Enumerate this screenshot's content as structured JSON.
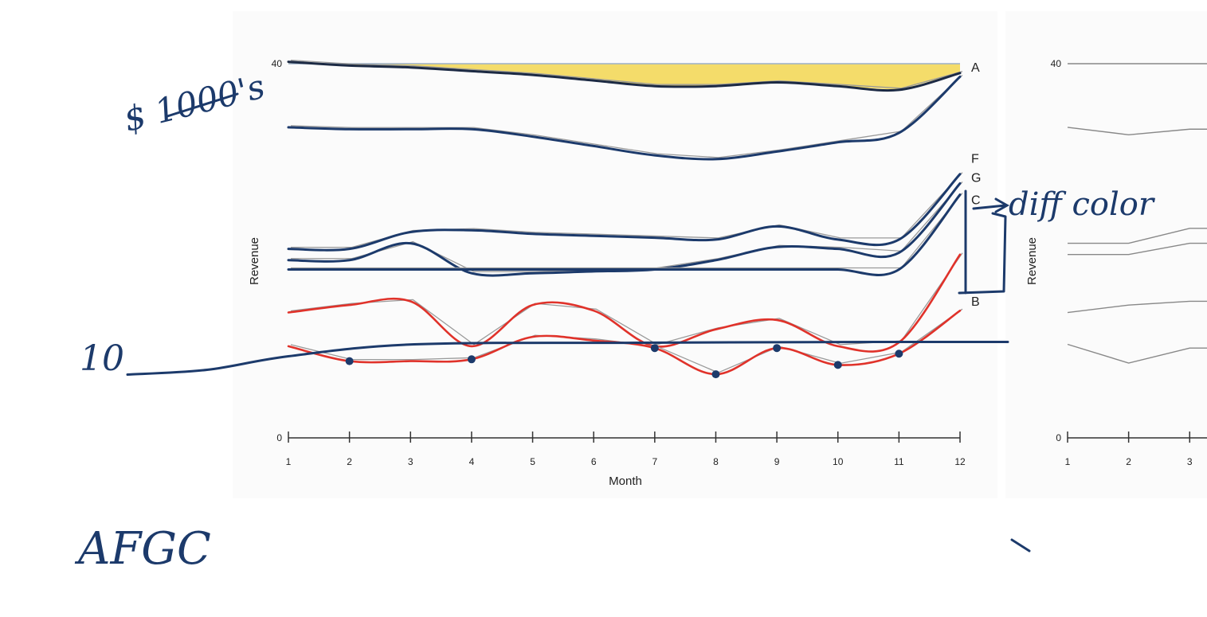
{
  "chart_data": [
    {
      "type": "line",
      "title": "",
      "xlabel": "Month",
      "ylabel": "Revenue",
      "x": [
        1,
        2,
        3,
        4,
        5,
        6,
        7,
        8,
        9,
        10,
        11,
        12
      ],
      "xlim": [
        1,
        12
      ],
      "ylim": [
        0,
        40
      ],
      "yticks": [
        "0",
        "40"
      ],
      "series": [
        {
          "name": "A",
          "values": [
            40.2,
            39.8,
            39.6,
            39.2,
            38.8,
            38.2,
            37.6,
            37.6,
            38.0,
            37.6,
            37.2,
            39.0
          ]
        },
        {
          "name": "",
          "values": [
            33.2,
            33.0,
            33.0,
            33.0,
            32.2,
            31.2,
            30.2,
            29.8,
            30.6,
            31.6,
            32.6,
            38.6
          ]
        },
        {
          "name": "F",
          "values": [
            20.2,
            20.2,
            22.0,
            22.2,
            21.8,
            21.6,
            21.4,
            21.2,
            22.6,
            21.2,
            21.2,
            28.2
          ]
        },
        {
          "name": "G",
          "values": [
            19.0,
            19.0,
            20.8,
            17.6,
            17.6,
            17.8,
            18.0,
            19.0,
            20.4,
            20.2,
            19.8,
            27.2
          ]
        },
        {
          "name": "C",
          "values": [
            18.0,
            18.0,
            18.0,
            18.0,
            18.0,
            18.0,
            18.0,
            18.0,
            18.0,
            18.0,
            18.0,
            26.0
          ]
        },
        {
          "name": "",
          "values": [
            13.4,
            14.2,
            14.6,
            9.8,
            14.2,
            13.6,
            9.8,
            11.6,
            12.6,
            9.8,
            10.2,
            19.6
          ]
        },
        {
          "name": "B",
          "values": [
            9.8,
            8.2,
            8.2,
            8.4,
            10.8,
            10.4,
            9.6,
            6.8,
            9.6,
            7.8,
            9.0,
            13.6
          ]
        }
      ],
      "fill_between": {
        "upper": "A",
        "color": "#f2d23a"
      },
      "colors": {
        "primary": "#1c3a6b",
        "red_series": "#e0322a",
        "ghost": "#9a9a9a",
        "fill": "#f2d23a"
      },
      "grid": false,
      "legend": "right-end labels"
    },
    {
      "type": "line",
      "title": "",
      "xlabel": "",
      "ylabel": "Revenue",
      "x": [
        1,
        2,
        3
      ],
      "xlim": [
        1,
        12
      ],
      "ylim": [
        0,
        40
      ],
      "yticks": [
        "0",
        "40"
      ],
      "series": [
        {
          "name": "",
          "values": [
            40,
            40,
            40
          ]
        },
        {
          "name": "",
          "values": [
            33.2,
            32.4,
            33.0
          ]
        },
        {
          "name": "",
          "values": [
            20.8,
            20.8,
            22.4
          ]
        },
        {
          "name": "",
          "values": [
            19.6,
            19.6,
            20.8
          ]
        },
        {
          "name": "",
          "values": [
            13.4,
            14.2,
            14.6
          ]
        },
        {
          "name": "",
          "values": [
            10.0,
            8.0,
            9.6
          ]
        }
      ],
      "grid": false,
      "partially_visible": true
    }
  ],
  "annotations": {
    "units_note": "$ 1000's",
    "ten_label": "10",
    "diff_color_note": "diff color",
    "series_list_note": "AFGC",
    "reference_line_value": 10,
    "red_series_marker_months": [
      2,
      4,
      7,
      8,
      9,
      10,
      11
    ]
  }
}
